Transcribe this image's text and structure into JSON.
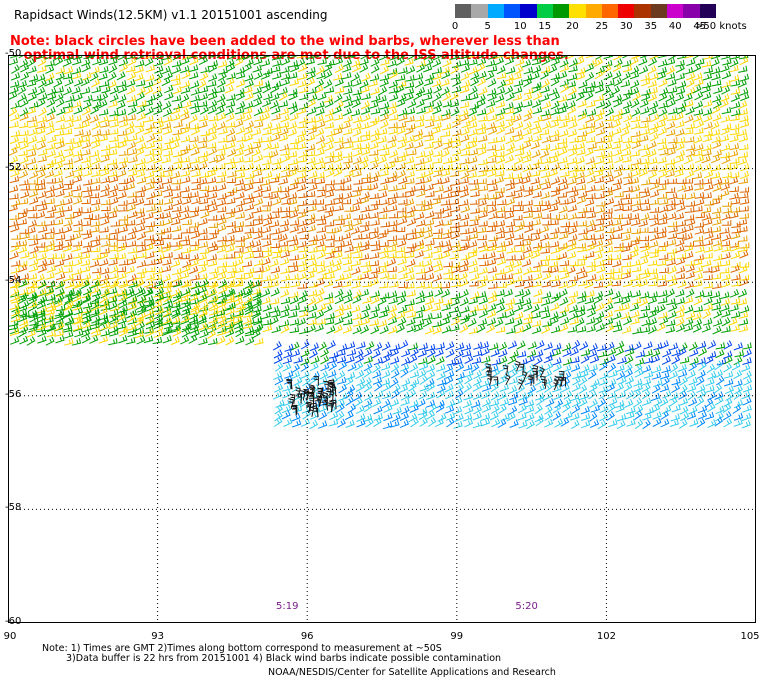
{
  "title": "Rapidsact Winds(12.5KM) v1.1 20151001 ascending",
  "note": {
    "line1": "Note: black circles have been added to the wind barbs, wherever less than",
    "line2": "optimal wind retrieval conditions are met due to the ISS altitude changes."
  },
  "legend": {
    "colors": [
      "#606060",
      "#a8a8a8",
      "#00aaff",
      "#0055ff",
      "#0000cc",
      "#00cc44",
      "#009900",
      "#ffe000",
      "#ffaa00",
      "#ff6600",
      "#ee0000",
      "#aa3300",
      "#6b3a1f",
      "#cc00cc",
      "#8800aa",
      "#220055"
    ],
    "labels": [
      {
        "text": "0",
        "pos": 0
      },
      {
        "text": "5",
        "pos": 2
      },
      {
        "text": "10",
        "pos": 4
      },
      {
        "text": "15",
        "pos": 5.5
      },
      {
        "text": "20",
        "pos": 7.2
      },
      {
        "text": "25",
        "pos": 9
      },
      {
        "text": "30",
        "pos": 10.5
      },
      {
        "text": "35",
        "pos": 12
      },
      {
        "text": "40",
        "pos": 13.5
      },
      {
        "text": "45",
        "pos": 15
      },
      {
        "text": ">50 knots",
        "pos": 16.3
      }
    ]
  },
  "axes": {
    "lon_ticks": [
      "90",
      "93",
      "96",
      "99",
      "102",
      "105"
    ],
    "lat_ticks": [
      "-50",
      "-52",
      "-54",
      "-56",
      "-58",
      "-60"
    ],
    "lon_range": [
      90,
      105
    ],
    "lat_range": [
      -50,
      -60
    ]
  },
  "time_labels": [
    {
      "text": "5:19",
      "lon": 95.6
    },
    {
      "text": "5:20",
      "lon": 100.4
    }
  ],
  "footer": {
    "line1": "Note: 1) Times are GMT 2)Times along bottom correspond to measurement at ~50S",
    "line2": "3)Data buffer is 22 hrs from 20151001 4) Black wind barbs indicate possible contamination",
    "line3": "NOAA/NESDIS/Center for Satellite Applications and Research"
  },
  "wind_bands": [
    {
      "lat_from": -50.0,
      "lat_to": -51.1,
      "color": "#00a000",
      "alt": "#ffd700",
      "dir": 20
    },
    {
      "lat_from": -51.1,
      "lat_to": -52.2,
      "color": "#ffd700",
      "alt": "#e8a000",
      "dir": 15
    },
    {
      "lat_from": -52.2,
      "lat_to": -53.4,
      "color": "#dd6600",
      "alt": "#e8a000",
      "dir": 10
    },
    {
      "lat_from": -53.4,
      "lat_to": -54.2,
      "color": "#ffd700",
      "alt": "#dd6600",
      "dir": 12
    },
    {
      "lat_from": -54.2,
      "lat_to": -55.0,
      "color": "#00a000",
      "alt": "#ffd700",
      "dir": 18
    },
    {
      "lat_from": -55.0,
      "lat_to": -55.5,
      "color": "#0044ee",
      "alt": "#00a000",
      "dir": 20
    },
    {
      "lat_from": -55.5,
      "lat_to": -56.6,
      "color": "#33ccee",
      "alt": "#0088ff",
      "dir": 25
    }
  ]
}
